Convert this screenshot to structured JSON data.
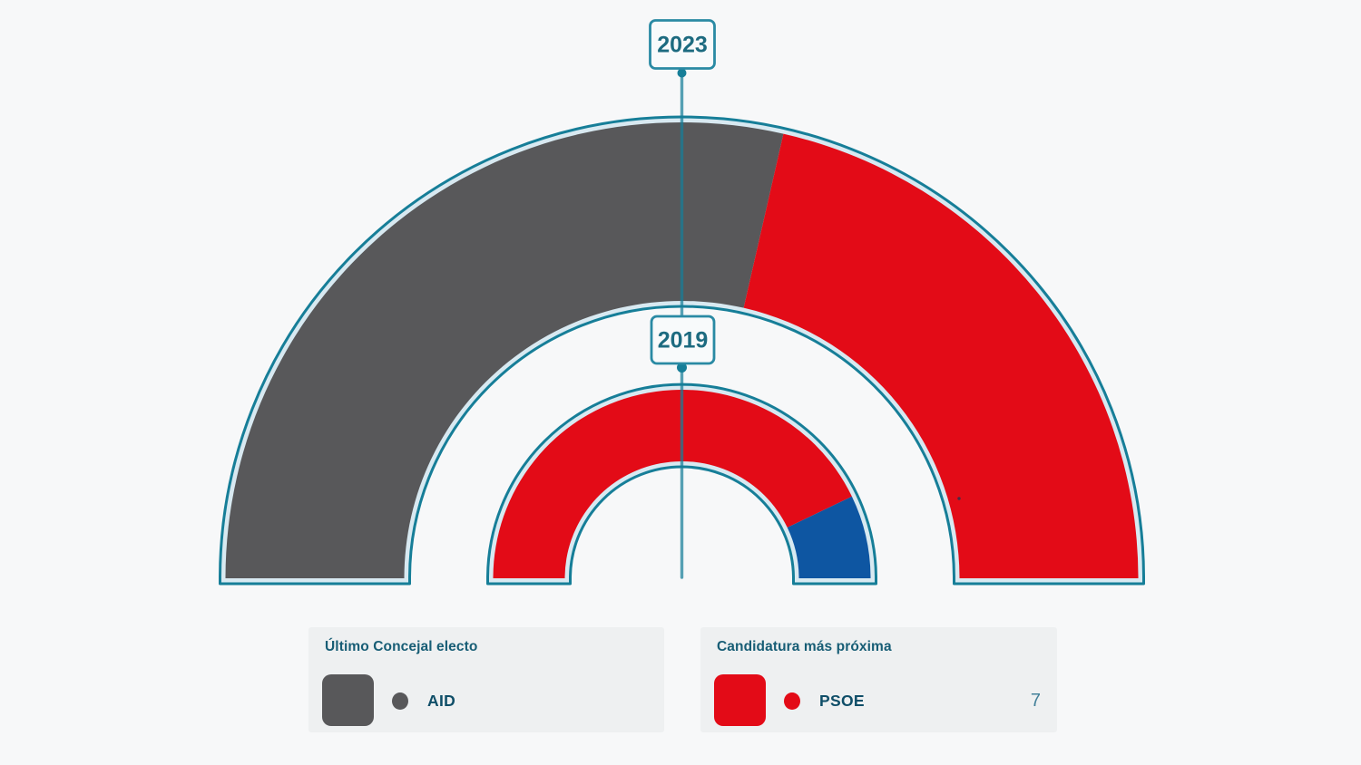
{
  "page": {
    "background": "#f7f8f9"
  },
  "theme": {
    "arc_outline": "#167e98",
    "arc_halo": "#d8e9f1",
    "connector_line": "rgba(22,126,152,0.72)",
    "year_box_fill": "#f8fafb",
    "year_box_border": "#2a8aa4",
    "year_text": "#1d6b80",
    "card_background": "#eef0f1",
    "card_title_color": "#175d75",
    "party_name_color": "#0f4e68",
    "value_color": "#44819a"
  },
  "chart_data": {
    "type": "hemicycle",
    "orientation": "half-donut-180",
    "rings": [
      {
        "year": "2023",
        "outer_radius": 503,
        "inner_radius": 306,
        "total_seats": 7,
        "segments": [
          {
            "label": "AID",
            "seats": 4,
            "share": 0.571,
            "color": "#58585a"
          },
          {
            "label": "PSOE",
            "seats": 3,
            "share": 0.429,
            "color": "#e30b17"
          }
        ]
      },
      {
        "year": "2019",
        "outer_radius": 208,
        "inner_radius": 129,
        "total_seats": 7,
        "segments": [
          {
            "label": "PSOE",
            "seats": 6,
            "share": 0.857,
            "color": "#e30b17"
          },
          {
            "label": "",
            "seats": 1,
            "share": 0.143,
            "color": "#0e56a2"
          }
        ]
      }
    ]
  },
  "legend": {
    "cards": [
      {
        "title": "Último Concejal electo",
        "party": "AID",
        "color": "#58585a",
        "value": ""
      },
      {
        "title": "Candidatura más próxima",
        "party": "PSOE",
        "color": "#e30b17",
        "value": "7"
      }
    ]
  }
}
